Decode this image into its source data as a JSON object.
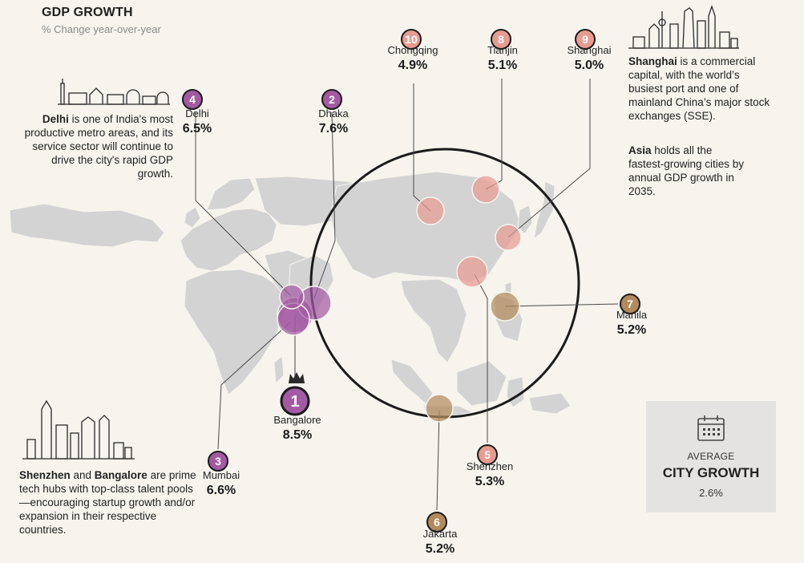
{
  "header": {
    "title": "GDP GROWTH",
    "subtitle": "% Change year-over-year"
  },
  "blurbs": {
    "delhi": {
      "bold": "Delhi",
      "text": " is one of India's most productive metro areas, and its service sector will continue to drive the city's rapid GDP growth."
    },
    "shanghai": {
      "bold": "Shanghai",
      "text": " is a commercial capital, with the world’s busiest port and one of mainland China’s major stock exchanges (SSE)."
    },
    "asia": {
      "bold": "Asia",
      "text": " holds all the fastest-growing cities by annual GDP growth in 2035."
    },
    "tech": {
      "bold1": "Shenzhen",
      "mid": " and ",
      "bold2": "Bangalore",
      "text": " are prime tech hubs with top-class talent pools—encouraging startup growth and/or expansion in their respective countries."
    }
  },
  "average": {
    "label": "AVERAGE",
    "title": "CITY GROWTH",
    "value": "2.6%"
  },
  "colors": {
    "india": "#a35aa3",
    "china": "#e89b91",
    "other": "#b38a5b",
    "land": "#d3d3d3",
    "background": "#f6f4ed"
  },
  "chart_data": {
    "type": "map-bubble",
    "title": "GDP GROWTH",
    "subtitle": "% Change year-over-year",
    "unit": "%",
    "cities": [
      {
        "rank": 1,
        "name": "Bangalore",
        "value": 8.5,
        "label": "8.5%",
        "group": "india"
      },
      {
        "rank": 2,
        "name": "Dhaka",
        "value": 7.6,
        "label": "7.6%",
        "group": "india"
      },
      {
        "rank": 3,
        "name": "Mumbai",
        "value": 6.6,
        "label": "6.6%",
        "group": "india"
      },
      {
        "rank": 4,
        "name": "Delhi",
        "value": 6.5,
        "label": "6.5%",
        "group": "india"
      },
      {
        "rank": 5,
        "name": "Shenzhen",
        "value": 5.3,
        "label": "5.3%",
        "group": "china"
      },
      {
        "rank": 6,
        "name": "Jakarta",
        "value": 5.2,
        "label": "5.2%",
        "group": "other"
      },
      {
        "rank": 7,
        "name": "Manila",
        "value": 5.2,
        "label": "5.2%",
        "group": "other"
      },
      {
        "rank": 8,
        "name": "Tianjin",
        "value": 5.1,
        "label": "5.1%",
        "group": "china"
      },
      {
        "rank": 9,
        "name": "Shanghai",
        "value": 5.0,
        "label": "5.0%",
        "group": "china"
      },
      {
        "rank": 10,
        "name": "Chongqing",
        "value": 4.9,
        "label": "4.9%",
        "group": "china"
      }
    ],
    "average": {
      "label": "AVERAGE CITY GROWTH",
      "value": 2.6
    }
  }
}
